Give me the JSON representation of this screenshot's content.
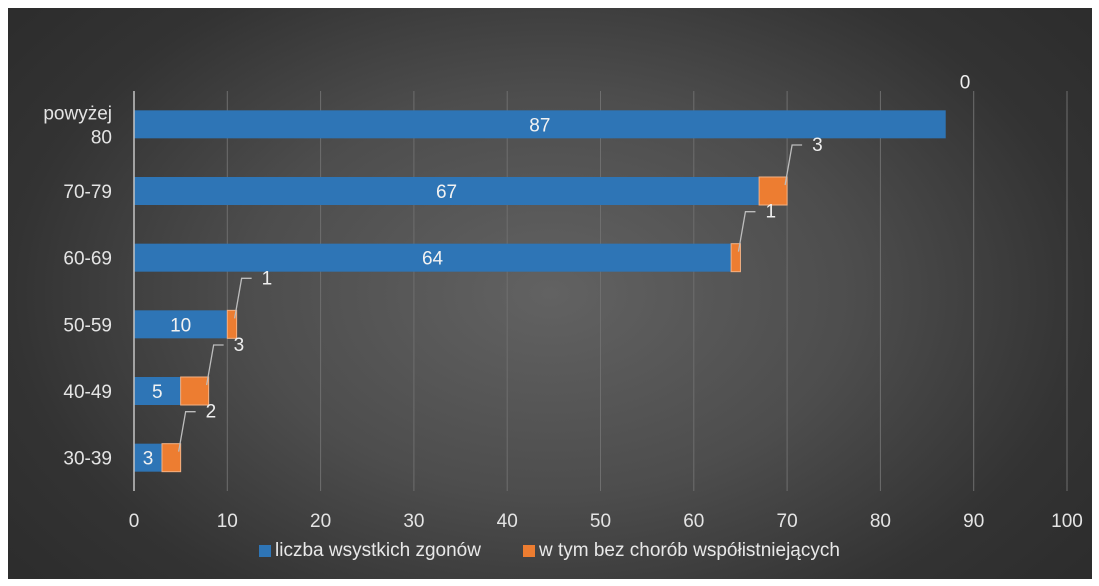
{
  "chart_data": {
    "type": "bar",
    "orientation": "horizontal",
    "stacked": true,
    "categories": [
      "30-39",
      "40-49",
      "50-59",
      "60-69",
      "70-79",
      "powyżej 80"
    ],
    "category_label_lines": [
      [
        "30-39"
      ],
      [
        "40-49"
      ],
      [
        "50-59"
      ],
      [
        "60-69"
      ],
      [
        "70-79"
      ],
      [
        "powyżej",
        "80"
      ]
    ],
    "series": [
      {
        "name": "liczba wsystkich zgonów",
        "values": [
          3,
          5,
          10,
          64,
          67,
          87
        ],
        "color": "#2e75b6",
        "labels": "inside"
      },
      {
        "name": "w tym bez chorób współistniejących",
        "values": [
          2,
          3,
          1,
          1,
          3,
          0
        ],
        "color": "#ed7d31",
        "labels": "callout"
      }
    ],
    "xlim": [
      0,
      100
    ],
    "xticks": [
      0,
      10,
      20,
      30,
      40,
      50,
      60,
      70,
      80,
      90,
      100
    ],
    "grid": true,
    "legend_position": "bottom",
    "title": "",
    "xlabel": "",
    "ylabel": ""
  }
}
